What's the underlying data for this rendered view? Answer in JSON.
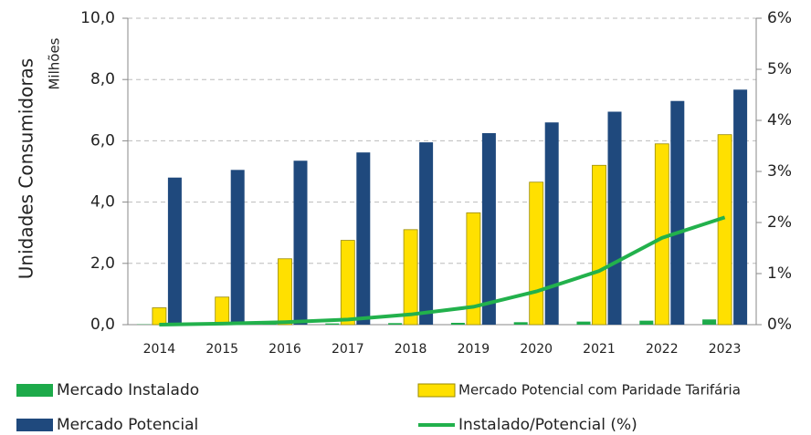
{
  "chart_data": {
    "type": "bar",
    "y_label": "Unidades Consumidoras",
    "y_unit_label": "Milhões",
    "categories": [
      "2014",
      "2015",
      "2016",
      "2017",
      "2018",
      "2019",
      "2020",
      "2021",
      "2022",
      "2023"
    ],
    "series": [
      {
        "name": "Mercado Instalado",
        "color": "#1daa4a",
        "values": [
          0.01,
          0.02,
          0.03,
          0.04,
          0.05,
          0.06,
          0.08,
          0.1,
          0.13,
          0.17
        ]
      },
      {
        "name": "Mercado Potencial com Paridade Tarifária",
        "color": "#ffe000",
        "values": [
          0.55,
          0.9,
          2.15,
          2.75,
          3.1,
          3.65,
          4.65,
          5.2,
          5.9,
          6.2
        ]
      },
      {
        "name": "Mercado Potencial",
        "color": "#1f497d",
        "values": [
          4.8,
          5.05,
          5.35,
          5.62,
          5.95,
          6.25,
          6.6,
          6.95,
          7.3,
          7.67
        ]
      },
      {
        "name": "Instalado/Potencial (%)",
        "color": "#22b14c",
        "type": "line",
        "axis": "y2",
        "values": [
          0,
          0.02,
          0.05,
          0.1,
          0.2,
          0.35,
          0.65,
          1.05,
          1.7,
          2.1
        ]
      }
    ],
    "ylim": [
      0,
      10
    ],
    "yticks": [
      {
        "value": 0,
        "label": "0,0"
      },
      {
        "value": 2,
        "label": "2,0"
      },
      {
        "value": 4,
        "label": "4,0"
      },
      {
        "value": 6,
        "label": "6,0"
      },
      {
        "value": 8,
        "label": "8,0"
      },
      {
        "value": 10,
        "label": "10,0"
      }
    ],
    "y2lim": [
      0,
      6
    ],
    "y2ticks": [
      {
        "value": 0,
        "label": "0%"
      },
      {
        "value": 1,
        "label": "1%"
      },
      {
        "value": 2,
        "label": "2%"
      },
      {
        "value": 3,
        "label": "3%"
      },
      {
        "value": 4,
        "label": "4%"
      },
      {
        "value": 5,
        "label": "5%"
      },
      {
        "value": 6,
        "label": "6%"
      }
    ],
    "grid": true
  }
}
